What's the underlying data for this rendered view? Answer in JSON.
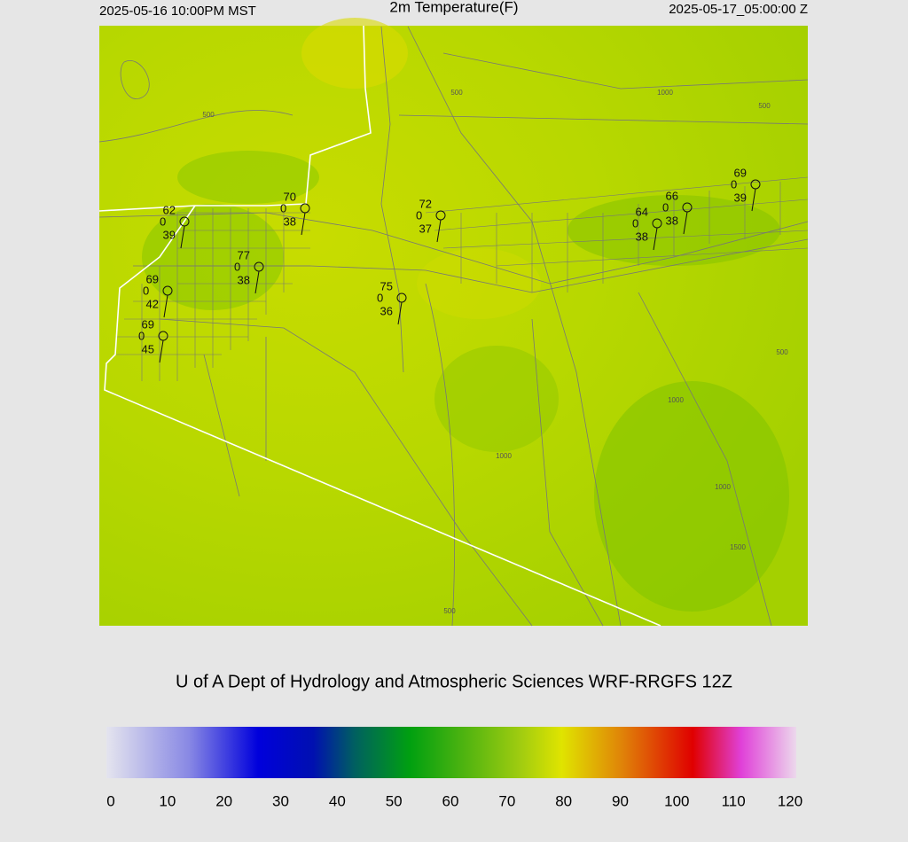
{
  "header": {
    "left": "2025-05-16 10:00PM MST",
    "title": "2m Temperature(F)",
    "right": "2025-05-17_05:00:00 Z"
  },
  "credit": "U of A Dept of Hydrology and Atmospheric Sciences WRF-RRGFS 12Z",
  "stations": [
    {
      "temperature": 62,
      "wind": 0,
      "dewpoint": 39
    },
    {
      "temperature": 70,
      "wind": 0,
      "dewpoint": 38
    },
    {
      "temperature": 77,
      "wind": 0,
      "dewpoint": 38
    },
    {
      "temperature": 69,
      "wind": 0,
      "dewpoint": 42
    },
    {
      "temperature": 69,
      "wind": 0,
      "dewpoint": 45
    },
    {
      "temperature": 72,
      "wind": 0,
      "dewpoint": 37
    },
    {
      "temperature": 75,
      "wind": 0,
      "dewpoint": 36
    },
    {
      "temperature": 64,
      "wind": 0,
      "dewpoint": 38
    },
    {
      "temperature": 66,
      "wind": 0,
      "dewpoint": 38
    },
    {
      "temperature": 69,
      "wind": 0,
      "dewpoint": 39
    }
  ],
  "contour_labels": [
    "500",
    "500",
    "1000",
    "500",
    "500",
    "1000",
    "1000",
    "1000",
    "1500",
    "500"
  ],
  "colorbar": {
    "ticks": [
      0,
      10,
      20,
      30,
      40,
      50,
      60,
      70,
      80,
      90,
      100,
      110,
      120
    ]
  }
}
